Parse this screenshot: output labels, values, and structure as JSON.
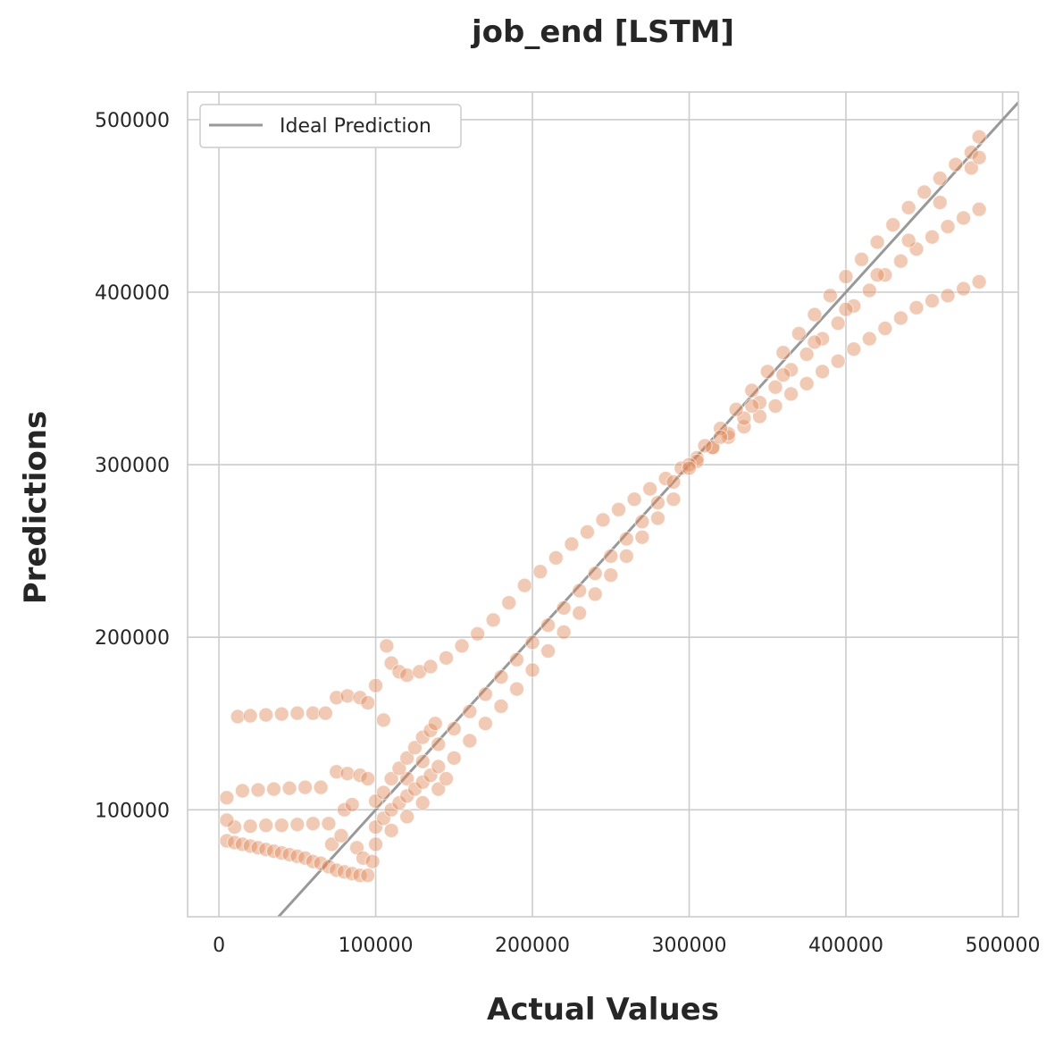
{
  "chart_data": {
    "type": "scatter",
    "title": "job_end [LSTM]",
    "xlabel": "Actual Values",
    "ylabel": "Predictions",
    "xlim": [
      -20000,
      510000
    ],
    "ylim": [
      38000,
      516000
    ],
    "xticks": [
      0,
      100000,
      200000,
      300000,
      400000,
      500000
    ],
    "yticks": [
      100000,
      200000,
      300000,
      400000,
      500000
    ],
    "xtick_labels": [
      "0",
      "100000",
      "200000",
      "300000",
      "400000",
      "500000"
    ],
    "ytick_labels": [
      "100000",
      "200000",
      "300000",
      "400000",
      "500000"
    ],
    "grid": true,
    "legend": {
      "position": "top-left",
      "entries": [
        "Ideal Prediction"
      ]
    },
    "colors": {
      "points": "#e08a5c",
      "ideal_line": "#999999",
      "grid": "#cccccc",
      "frame": "#cccccc"
    },
    "ideal_line": {
      "from": [
        -20000,
        -20000
      ],
      "to": [
        510000,
        510000
      ]
    },
    "series": [
      {
        "points": [
          [
            5000,
            107000
          ],
          [
            15000,
            111000
          ],
          [
            25000,
            111500
          ],
          [
            35000,
            112000
          ],
          [
            45000,
            112500
          ],
          [
            55000,
            113000
          ],
          [
            65000,
            113000
          ],
          [
            12000,
            154000
          ],
          [
            20000,
            154500
          ],
          [
            30000,
            155000
          ],
          [
            40000,
            155500
          ],
          [
            50000,
            156000
          ],
          [
            60000,
            156000
          ],
          [
            68000,
            156000
          ],
          [
            75000,
            165000
          ],
          [
            82000,
            166000
          ],
          [
            90000,
            165000
          ],
          [
            95000,
            162000
          ],
          [
            100000,
            172000
          ],
          [
            105000,
            152000
          ],
          [
            107000,
            195000
          ],
          [
            110000,
            185000
          ],
          [
            115000,
            180000
          ],
          [
            120000,
            178000
          ],
          [
            128000,
            180000
          ],
          [
            135000,
            183000
          ],
          [
            145000,
            188000
          ],
          [
            155000,
            195000
          ],
          [
            165000,
            202000
          ],
          [
            175000,
            210000
          ],
          [
            185000,
            220000
          ],
          [
            195000,
            230000
          ],
          [
            205000,
            238000
          ],
          [
            215000,
            246000
          ],
          [
            225000,
            254000
          ],
          [
            235000,
            261000
          ],
          [
            245000,
            268000
          ],
          [
            255000,
            274000
          ],
          [
            265000,
            280000
          ],
          [
            275000,
            286000
          ],
          [
            285000,
            292000
          ],
          [
            295000,
            298000
          ],
          [
            305000,
            304000
          ],
          [
            315000,
            310000
          ],
          [
            325000,
            316000
          ],
          [
            335000,
            322000
          ],
          [
            345000,
            328000
          ],
          [
            355000,
            334000
          ],
          [
            365000,
            341000
          ],
          [
            375000,
            347000
          ],
          [
            385000,
            354000
          ],
          [
            395000,
            360000
          ],
          [
            405000,
            367000
          ],
          [
            415000,
            373000
          ],
          [
            425000,
            379000
          ],
          [
            435000,
            385000
          ],
          [
            445000,
            391000
          ],
          [
            455000,
            395000
          ],
          [
            465000,
            398000
          ],
          [
            475000,
            402000
          ],
          [
            485000,
            406000
          ],
          [
            305000,
            302000
          ],
          [
            315000,
            310000
          ],
          [
            325000,
            318000
          ],
          [
            335000,
            327000
          ],
          [
            345000,
            336000
          ],
          [
            355000,
            345000
          ],
          [
            365000,
            355000
          ],
          [
            375000,
            364000
          ],
          [
            385000,
            373000
          ],
          [
            395000,
            382000
          ],
          [
            405000,
            392000
          ],
          [
            415000,
            401000
          ],
          [
            425000,
            410000
          ],
          [
            435000,
            418000
          ],
          [
            445000,
            425000
          ],
          [
            455000,
            432000
          ],
          [
            465000,
            438000
          ],
          [
            475000,
            443000
          ],
          [
            485000,
            448000
          ],
          [
            290000,
            290000
          ],
          [
            300000,
            300000
          ],
          [
            310000,
            311000
          ],
          [
            320000,
            321000
          ],
          [
            330000,
            332000
          ],
          [
            340000,
            343000
          ],
          [
            350000,
            354000
          ],
          [
            360000,
            365000
          ],
          [
            370000,
            376000
          ],
          [
            380000,
            387000
          ],
          [
            390000,
            398000
          ],
          [
            400000,
            409000
          ],
          [
            410000,
            419000
          ],
          [
            420000,
            429000
          ],
          [
            430000,
            439000
          ],
          [
            440000,
            449000
          ],
          [
            450000,
            458000
          ],
          [
            460000,
            466000
          ],
          [
            470000,
            474000
          ],
          [
            480000,
            481000
          ],
          [
            485000,
            490000
          ],
          [
            300000,
            298000
          ],
          [
            320000,
            316000
          ],
          [
            340000,
            334000
          ],
          [
            360000,
            352000
          ],
          [
            380000,
            371000
          ],
          [
            400000,
            390000
          ],
          [
            420000,
            410000
          ],
          [
            440000,
            430000
          ],
          [
            460000,
            452000
          ],
          [
            480000,
            472000
          ],
          [
            485000,
            478000
          ],
          [
            120000,
            118000
          ],
          [
            130000,
            128000
          ],
          [
            140000,
            138000
          ],
          [
            150000,
            147000
          ],
          [
            160000,
            157000
          ],
          [
            170000,
            167000
          ],
          [
            180000,
            177000
          ],
          [
            190000,
            187000
          ],
          [
            200000,
            197000
          ],
          [
            210000,
            207000
          ],
          [
            220000,
            217000
          ],
          [
            230000,
            227000
          ],
          [
            240000,
            237000
          ],
          [
            250000,
            247000
          ],
          [
            260000,
            257000
          ],
          [
            270000,
            267000
          ],
          [
            280000,
            278000
          ],
          [
            150000,
            130000
          ],
          [
            160000,
            140000
          ],
          [
            170000,
            150000
          ],
          [
            180000,
            160000
          ],
          [
            190000,
            170000
          ],
          [
            200000,
            181000
          ],
          [
            210000,
            192000
          ],
          [
            220000,
            203000
          ],
          [
            230000,
            214000
          ],
          [
            240000,
            225000
          ],
          [
            250000,
            236000
          ],
          [
            260000,
            247000
          ],
          [
            270000,
            258000
          ],
          [
            280000,
            269000
          ],
          [
            290000,
            280000
          ],
          [
            100000,
            105000
          ],
          [
            105000,
            110000
          ],
          [
            110000,
            118000
          ],
          [
            115000,
            124000
          ],
          [
            120000,
            130000
          ],
          [
            125000,
            136000
          ],
          [
            130000,
            142000
          ],
          [
            135000,
            146000
          ],
          [
            138000,
            150000
          ],
          [
            100000,
            90000
          ],
          [
            105000,
            95000
          ],
          [
            110000,
            100000
          ],
          [
            115000,
            104000
          ],
          [
            120000,
            108000
          ],
          [
            125000,
            112000
          ],
          [
            130000,
            116000
          ],
          [
            135000,
            120000
          ],
          [
            140000,
            125000
          ],
          [
            100000,
            80000
          ],
          [
            110000,
            88000
          ],
          [
            120000,
            96000
          ],
          [
            130000,
            104000
          ],
          [
            140000,
            112000
          ],
          [
            145000,
            118000
          ],
          [
            5000,
            82000
          ],
          [
            10000,
            81000
          ],
          [
            15000,
            80000
          ],
          [
            20000,
            79000
          ],
          [
            25000,
            78000
          ],
          [
            30000,
            77000
          ],
          [
            35000,
            76000
          ],
          [
            40000,
            75000
          ],
          [
            45000,
            74000
          ],
          [
            50000,
            73000
          ],
          [
            55000,
            72000
          ],
          [
            60000,
            70000
          ],
          [
            65000,
            69000
          ],
          [
            70000,
            67000
          ],
          [
            75000,
            65000
          ],
          [
            80000,
            64000
          ],
          [
            85000,
            63000
          ],
          [
            90000,
            62000
          ],
          [
            95000,
            62000
          ],
          [
            10000,
            90000
          ],
          [
            20000,
            90500
          ],
          [
            30000,
            91000
          ],
          [
            40000,
            91000
          ],
          [
            50000,
            91500
          ],
          [
            60000,
            92000
          ],
          [
            70000,
            92000
          ],
          [
            80000,
            100000
          ],
          [
            85000,
            103000
          ],
          [
            75000,
            122000
          ],
          [
            82000,
            121000
          ],
          [
            90000,
            120000
          ],
          [
            95000,
            118000
          ],
          [
            5000,
            94000
          ],
          [
            72000,
            80000
          ],
          [
            78000,
            85000
          ],
          [
            88000,
            78000
          ],
          [
            92000,
            72000
          ],
          [
            98000,
            70000
          ]
        ]
      }
    ]
  }
}
